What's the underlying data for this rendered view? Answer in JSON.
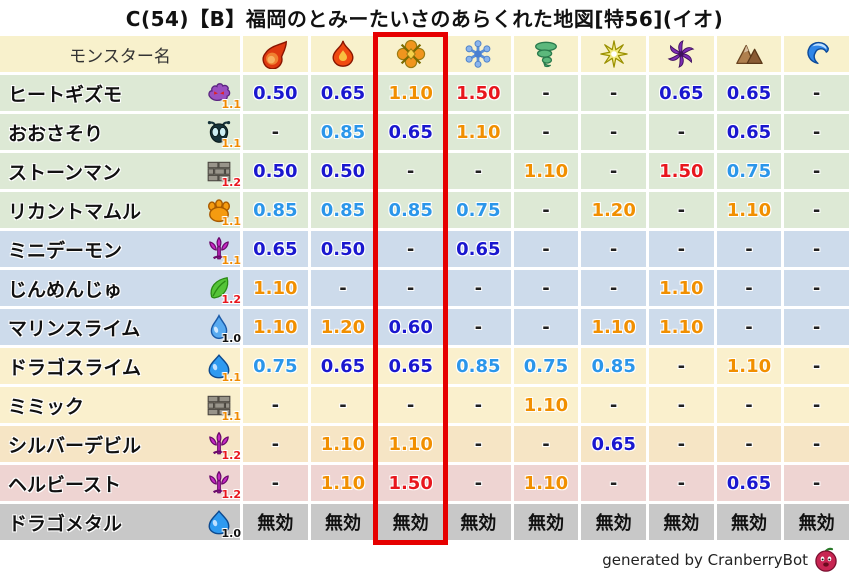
{
  "title": "C(54)【B】福岡のとみーたいさのあらくれた地図[特56](イオ)",
  "footer": {
    "credit": "generated by CranberryBot",
    "icon": "cranberry-icon"
  },
  "palette": {
    "header_bg": "#f8f1cc",
    "row_colors": {
      "green": "#dde9d5",
      "blue": "#cddbeb",
      "cream": "#faf0cd",
      "peach": "#f6e5c5",
      "pink": "#eed4d2",
      "gray": "#c8c8c8"
    },
    "value_colors": {
      "strong_resist": "#1a17cf",
      "mild_resist": "#2b96ea",
      "weak": "#f18f00",
      "very_weak": "#e8161d",
      "neutral": "#1f1f1f",
      "immune": "#111111"
    },
    "rate_colors": {
      "black": "#111111",
      "orange": "#f08a00",
      "red": "#e8161d"
    },
    "highlight_border": "#e60000"
  },
  "chart_data": {
    "type": "table",
    "title": "C(54)【B】福岡のとみーたいさのあらくれた地図[特56](イオ)",
    "row_header": "モンスター名",
    "immune_label": "無効",
    "highlighted_column_index": 2,
    "columns": [
      {
        "icon": "fireball-icon"
      },
      {
        "icon": "flame-icon"
      },
      {
        "icon": "explosion-icon",
        "highlighted": true
      },
      {
        "icon": "snowflake-icon"
      },
      {
        "icon": "tornado-icon"
      },
      {
        "icon": "light-star-icon"
      },
      {
        "icon": "dark-pinwheel-icon"
      },
      {
        "icon": "mountain-icon"
      },
      {
        "icon": "wave-icon"
      }
    ],
    "rows": [
      {
        "name": "ヒートギズモ",
        "icon": "heat-gizmo-icon",
        "rate": "1.1",
        "rate_color": "orange",
        "row_color": "green",
        "values": [
          "0.50",
          "0.65",
          "1.10",
          "1.50",
          "-",
          "-",
          "0.65",
          "0.65",
          "-"
        ]
      },
      {
        "name": "おおさそり",
        "icon": "scorpion-icon",
        "rate": "1.1",
        "rate_color": "orange",
        "row_color": "green",
        "values": [
          "-",
          "0.85",
          "0.65",
          "1.10",
          "-",
          "-",
          "-",
          "0.65",
          "-"
        ]
      },
      {
        "name": "ストーンマン",
        "icon": "brick-icon",
        "rate": "1.2",
        "rate_color": "red",
        "row_color": "green",
        "values": [
          "0.50",
          "0.50",
          "-",
          "-",
          "1.10",
          "-",
          "1.50",
          "0.75",
          "-"
        ]
      },
      {
        "name": "リカントマムル",
        "icon": "paw-icon",
        "rate": "1.1",
        "rate_color": "orange",
        "row_color": "green",
        "values": [
          "0.85",
          "0.85",
          "0.85",
          "0.75",
          "-",
          "1.20",
          "-",
          "1.10",
          "-"
        ]
      },
      {
        "name": "ミニデーモン",
        "icon": "demon-trident-icon",
        "rate": "1.1",
        "rate_color": "orange",
        "row_color": "blue",
        "values": [
          "0.65",
          "0.50",
          "-",
          "0.65",
          "-",
          "-",
          "-",
          "-",
          "-"
        ]
      },
      {
        "name": "じんめんじゅ",
        "icon": "leaf-icon",
        "rate": "1.2",
        "rate_color": "red",
        "row_color": "blue",
        "values": [
          "1.10",
          "-",
          "-",
          "-",
          "-",
          "-",
          "1.10",
          "-",
          "-"
        ]
      },
      {
        "name": "マリンスライム",
        "icon": "droplet-icon",
        "rate": "1.0",
        "rate_color": "black",
        "row_color": "blue",
        "values": [
          "1.10",
          "1.20",
          "0.60",
          "-",
          "-",
          "1.10",
          "1.10",
          "-",
          "-"
        ]
      },
      {
        "name": "ドラゴスライム",
        "icon": "slime-icon",
        "rate": "1.1",
        "rate_color": "orange",
        "row_color": "cream",
        "values": [
          "0.75",
          "0.65",
          "0.65",
          "0.85",
          "0.75",
          "0.85",
          "-",
          "1.10",
          "-"
        ]
      },
      {
        "name": "ミミック",
        "icon": "brick-icon",
        "rate": "1.1",
        "rate_color": "orange",
        "row_color": "cream",
        "values": [
          "-",
          "-",
          "-",
          "-",
          "1.10",
          "-",
          "-",
          "-",
          "-"
        ]
      },
      {
        "name": "シルバーデビル",
        "icon": "demon-trident-icon",
        "rate": "1.2",
        "rate_color": "red",
        "row_color": "peach",
        "values": [
          "-",
          "1.10",
          "1.10",
          "-",
          "-",
          "0.65",
          "-",
          "-",
          "-"
        ]
      },
      {
        "name": "ヘルビースト",
        "icon": "demon-trident-icon",
        "rate": "1.2",
        "rate_color": "red",
        "row_color": "pink",
        "values": [
          "-",
          "1.10",
          "1.50",
          "-",
          "1.10",
          "-",
          "-",
          "0.65",
          "-"
        ]
      },
      {
        "name": "ドラゴメタル",
        "icon": "slime-icon",
        "rate": "1.0",
        "rate_color": "black",
        "row_color": "gray",
        "values": [
          "無効",
          "無効",
          "無効",
          "無効",
          "無効",
          "無効",
          "無効",
          "無効",
          "無効"
        ]
      }
    ]
  }
}
